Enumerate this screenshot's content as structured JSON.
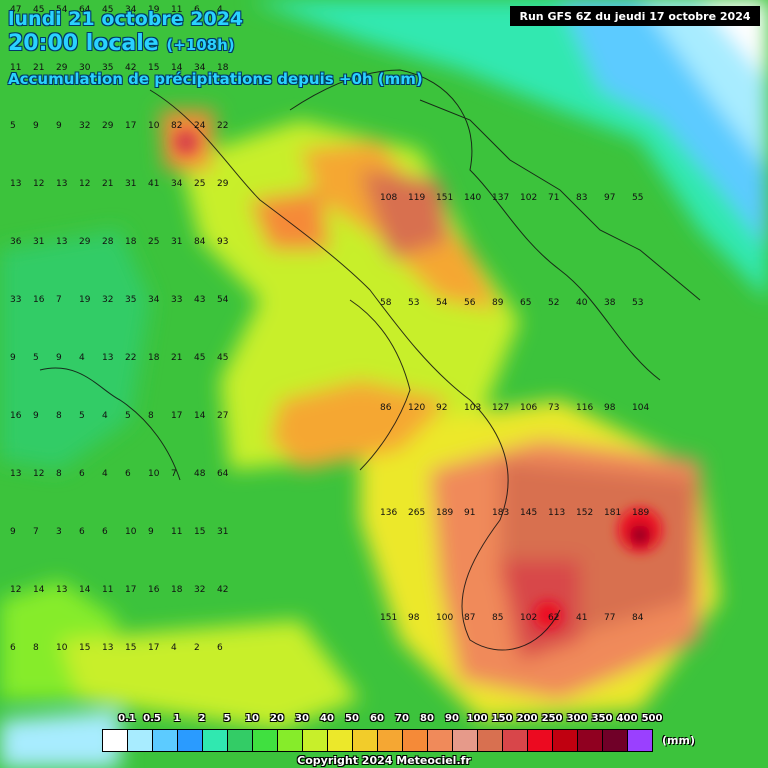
{
  "header": {
    "date_line": "lundi 21 octobre 2024",
    "time_line": "20:00 locale",
    "lead_time": "(+108h)",
    "product_line": "Accumulation de précipitations depuis +0h (mm)",
    "run_info": "Run GFS 6Z du jeudi 17 octobre 2024"
  },
  "legend": {
    "labels": [
      "0.1",
      "0.5",
      "1",
      "2",
      "5",
      "10",
      "20",
      "30",
      "40",
      "50",
      "60",
      "70",
      "80",
      "90",
      "100",
      "150",
      "200",
      "250",
      "300",
      "350",
      "400",
      "500"
    ],
    "colors": [
      "#ffffff",
      "#a8ecff",
      "#5ccbff",
      "#2a9bff",
      "#30e8b0",
      "#33cc66",
      "#40e040",
      "#86ec2a",
      "#c8ef2a",
      "#ece82a",
      "#f2cc2a",
      "#f5a733",
      "#f58a38",
      "#f08a5a",
      "#e69a8a",
      "#d87050",
      "#d8464a",
      "#ec0a20",
      "#c00010",
      "#900020",
      "#700028",
      "#9a40ff"
    ],
    "unit": "(mm)"
  },
  "footer": {
    "copyright": "Copyright 2024 Meteociel.fr"
  },
  "map": {
    "sample_values": [
      [
        "47",
        "45",
        "54",
        "64",
        "45",
        "34",
        "19",
        "11",
        "6",
        "4"
      ],
      [
        "11",
        "21",
        "29",
        "30",
        "35",
        "42",
        "15",
        "14",
        "34",
        "18"
      ],
      [
        "5",
        "9",
        "9",
        "32",
        "29",
        "17",
        "10",
        "82",
        "24",
        "22"
      ],
      [
        "13",
        "12",
        "13",
        "12",
        "21",
        "31",
        "41",
        "34",
        "25",
        "29"
      ],
      [
        "36",
        "31",
        "13",
        "29",
        "28",
        "18",
        "25",
        "31",
        "84",
        "93"
      ],
      [
        "33",
        "16",
        "7",
        "19",
        "32",
        "35",
        "34",
        "33",
        "43",
        "54"
      ],
      [
        "9",
        "5",
        "9",
        "4",
        "13",
        "22",
        "18",
        "21",
        "45",
        "45"
      ],
      [
        "16",
        "9",
        "8",
        "5",
        "4",
        "5",
        "8",
        "17",
        "14",
        "27"
      ],
      [
        "13",
        "12",
        "8",
        "6",
        "4",
        "6",
        "10",
        "7",
        "48",
        "64"
      ],
      [
        "9",
        "7",
        "3",
        "6",
        "6",
        "10",
        "9",
        "11",
        "15",
        "31"
      ],
      [
        "12",
        "14",
        "13",
        "14",
        "11",
        "17",
        "16",
        "18",
        "32",
        "42"
      ],
      [
        "6",
        "8",
        "10",
        "15",
        "13",
        "15",
        "17",
        "4",
        "2",
        "6"
      ]
    ],
    "sample_values_east": [
      [
        "108",
        "119",
        "151",
        "140",
        "137",
        "102",
        "71",
        "83",
        "97",
        "55"
      ],
      [
        "58",
        "53",
        "54",
        "56",
        "89",
        "65",
        "52",
        "40",
        "38",
        "53"
      ],
      [
        "86",
        "120",
        "92",
        "103",
        "127",
        "106",
        "73",
        "116",
        "98",
        "104"
      ],
      [
        "136",
        "265",
        "189",
        "91",
        "183",
        "145",
        "113",
        "152",
        "181",
        "189"
      ],
      [
        "151",
        "98",
        "100",
        "87",
        "85",
        "102",
        "62",
        "41",
        "77",
        "84"
      ]
    ]
  }
}
